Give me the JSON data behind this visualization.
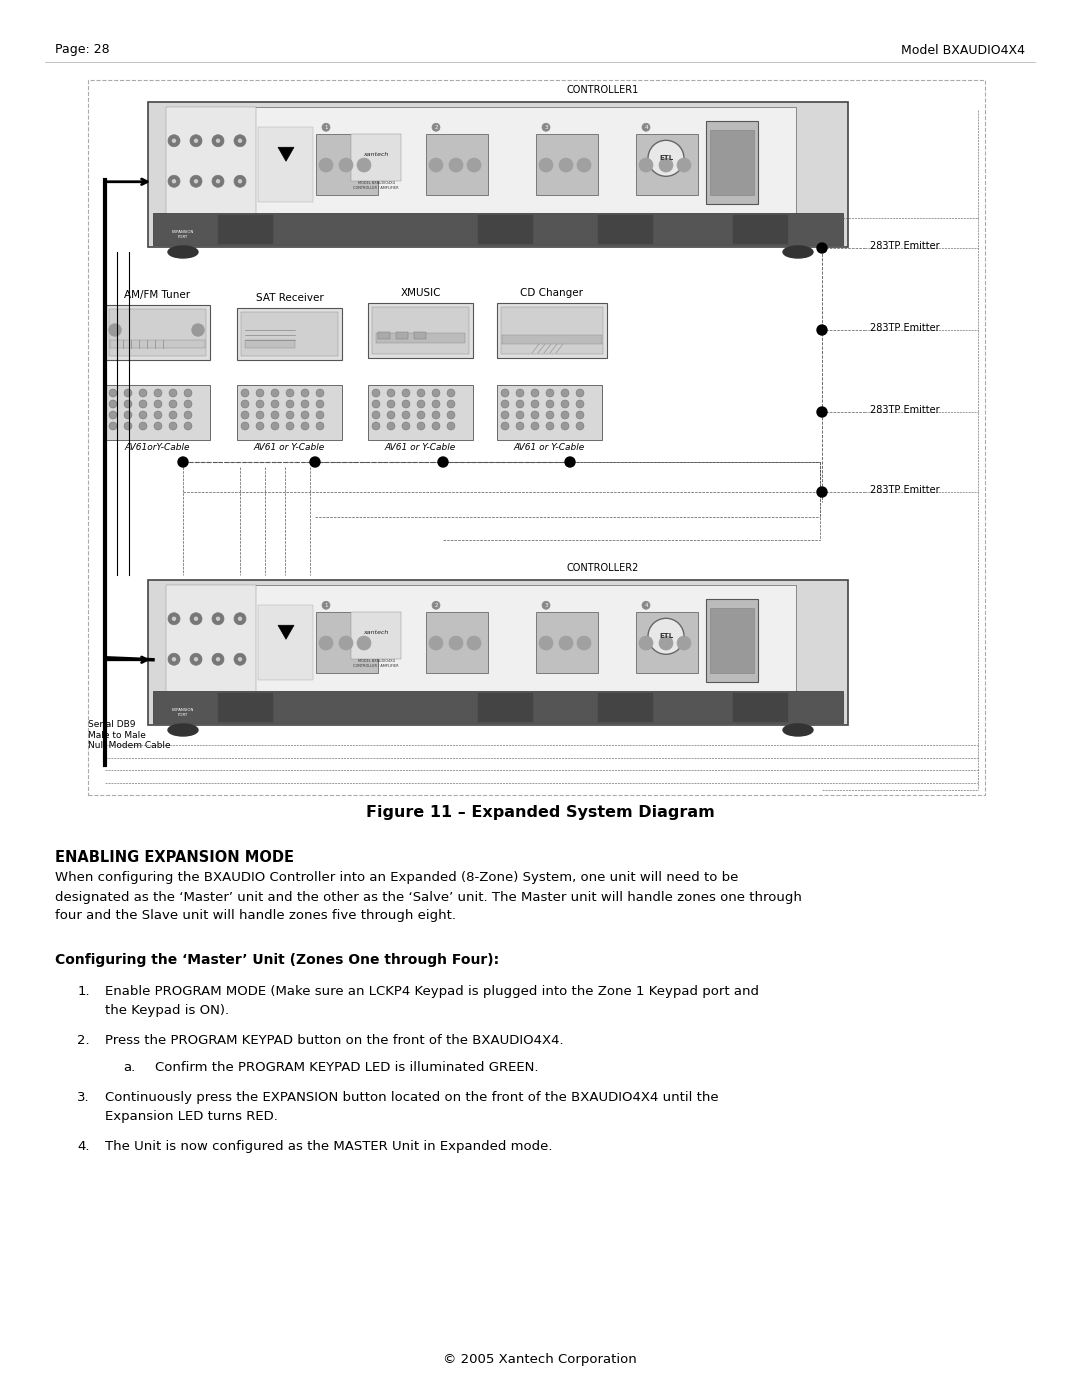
{
  "page_header_left": "Page: 28",
  "page_header_right": "Model BXAUDIO4X4",
  "figure_caption": "Figure 11 – Expanded System Diagram",
  "section_title": "ENABLING EXPANSION MODE",
  "section_body_lines": [
    "When configuring the BXAUDIO Controller into an Expanded (8-Zone) System, one unit will need to be",
    "designated as the ‘Master’ unit and the other as the ‘Salve’ unit. The Master unit will handle zones one through",
    "four and the Slave unit will handle zones five through eight."
  ],
  "subsection_title": "Configuring the ‘Master’ Unit (Zones One through Four):",
  "steps": [
    [
      "Enable PROGRAM MODE (Make sure an LCKP4 Keypad is plugged into the Zone 1 Keypad port and",
      "the Keypad is ON)."
    ],
    [
      "Press the PROGRAM KEYPAD button on the front of the BXAUDIO4X4."
    ],
    [
      "Continuously press the EXPANSION button located on the front of the BXAUDIO4X4 until the",
      "Expansion LED turns RED."
    ],
    [
      "The Unit is now configured as the MASTER Unit in Expanded mode."
    ]
  ],
  "sub_steps_2": [
    "Confirm the PROGRAM KEYPAD LED is illuminated GREEN."
  ],
  "footer": "© 2005 Xantech Corporation",
  "bg_color": "#ffffff",
  "text_color": "#000000"
}
